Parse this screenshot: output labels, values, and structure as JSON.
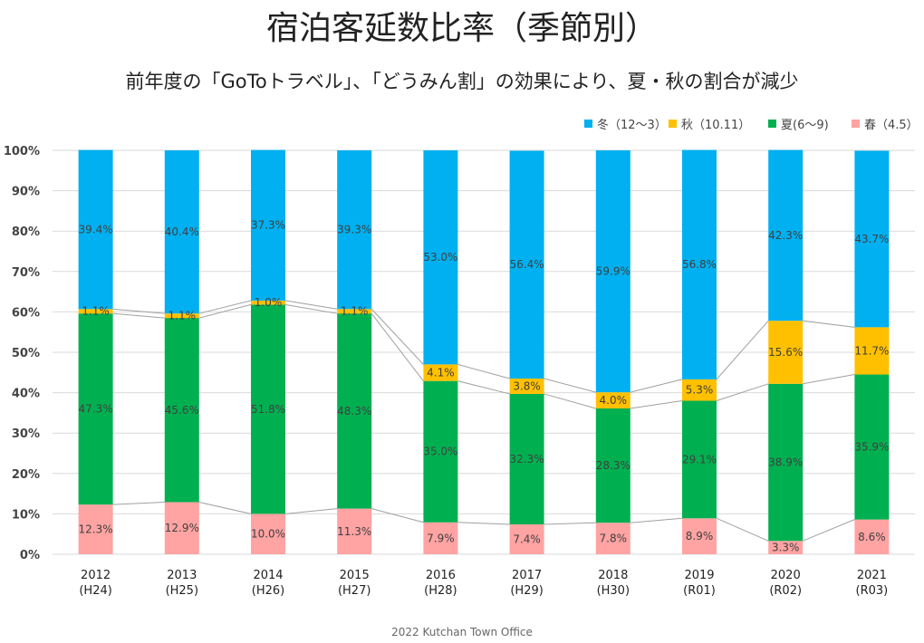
{
  "title": "宿泊客延数比率（季節別）",
  "subtitle": "前年度の「GoToトラベル」、「どうみん割」の効果により、夏・秋の割合が減少",
  "footer": "2022 Kutchan Town Office",
  "chart_data": {
    "type": "bar",
    "stacked": true,
    "categories": [
      "2012\n(H24)",
      "2013\n(H25)",
      "2014\n(H26)",
      "2015\n(H27)",
      "2016\n(H28)",
      "2017\n(H29)",
      "2018\n(H30)",
      "2019\n(R01)",
      "2020\n(R02)",
      "2021\n(R03)"
    ],
    "category_lines": [
      [
        "2012",
        "(H24)"
      ],
      [
        "2013",
        "(H25)"
      ],
      [
        "2014",
        "(H26)"
      ],
      [
        "2015",
        "(H27)"
      ],
      [
        "2016",
        "(H28)"
      ],
      [
        "2017",
        "(H29)"
      ],
      [
        "2018",
        "(H30)"
      ],
      [
        "2019",
        "(R01)"
      ],
      [
        "2020",
        "(R02)"
      ],
      [
        "2021",
        "(R03)"
      ]
    ],
    "series": [
      {
        "name": "春（4.5）",
        "color": "#FFA3A3",
        "values": [
          12.3,
          12.9,
          10.0,
          11.3,
          7.9,
          7.4,
          7.8,
          8.9,
          3.3,
          8.6
        ]
      },
      {
        "name": "夏(6～9)",
        "color": "#00B050",
        "values": [
          47.3,
          45.6,
          51.8,
          48.3,
          35.0,
          32.3,
          28.3,
          29.1,
          38.9,
          35.9
        ]
      },
      {
        "name": "秋（10.11）",
        "color": "#FFC000",
        "values": [
          1.1,
          1.1,
          1.0,
          1.1,
          4.1,
          3.8,
          4.0,
          5.3,
          15.6,
          11.7
        ]
      },
      {
        "name": "冬（12～3）",
        "color": "#00B0F0",
        "values": [
          39.4,
          40.4,
          37.3,
          39.3,
          53.0,
          56.4,
          59.9,
          56.8,
          42.3,
          43.7
        ]
      }
    ],
    "legend_order": [
      "冬（12～3）",
      "秋（10.11）",
      "夏(6～9)",
      "春（4.5）"
    ],
    "yticks": [
      "0%",
      "10%",
      "20%",
      "30%",
      "40%",
      "50%",
      "60%",
      "70%",
      "80%",
      "90%",
      "100%"
    ],
    "ylim": [
      0,
      100
    ],
    "grid": true,
    "legend": "top-right",
    "series_lines": true
  }
}
